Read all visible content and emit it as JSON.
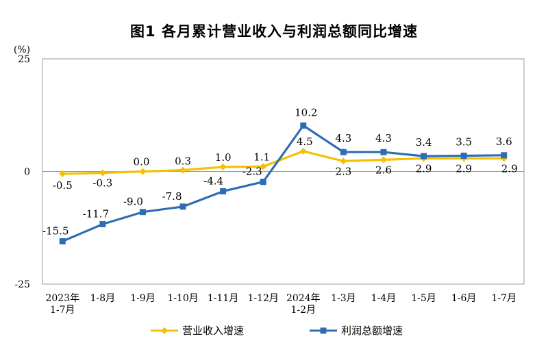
{
  "chart_data": {
    "type": "line",
    "title": "图1  各月累计营业收入与利润总额同比增速",
    "unit_label": "(%)",
    "ylim": [
      -25,
      25
    ],
    "yticks": [
      "25",
      "0",
      "-25"
    ],
    "categories": [
      [
        "2023年",
        "1-7月"
      ],
      [
        "1-8月"
      ],
      [
        "1-9月"
      ],
      [
        "1-10月"
      ],
      [
        "1-11月"
      ],
      [
        "1-12月"
      ],
      [
        "2024年",
        "1-2月"
      ],
      [
        "1-3月"
      ],
      [
        "1-4月"
      ],
      [
        "1-5月"
      ],
      [
        "1-6月"
      ],
      [
        "1-7月"
      ]
    ],
    "series": [
      {
        "name": "营业收入增速",
        "color": "#F5C000",
        "marker": "diamond",
        "values": [
          -0.5,
          -0.3,
          0.0,
          0.3,
          1.0,
          1.1,
          4.5,
          2.3,
          2.6,
          2.9,
          2.9,
          2.9
        ],
        "labels": [
          "-0.5",
          "-0.3",
          "0.0",
          "0.3",
          "1.0",
          "1.1",
          "4.5",
          "2.3",
          "2.6",
          "2.9",
          "2.9",
          "2.9"
        ]
      },
      {
        "name": "利润总额增速",
        "color": "#2E6DB4",
        "marker": "square",
        "values": [
          -15.5,
          -11.7,
          -9.0,
          -7.8,
          -4.4,
          -2.3,
          10.2,
          4.3,
          4.3,
          3.4,
          3.5,
          3.6
        ],
        "labels": [
          "-15.5",
          "-11.7",
          "-9.0",
          "-7.8",
          "-4.4",
          "-2.3",
          "10.2",
          "4.3",
          "4.3",
          "3.4",
          "3.5",
          "3.6"
        ]
      }
    ],
    "legend_position": "bottom"
  }
}
